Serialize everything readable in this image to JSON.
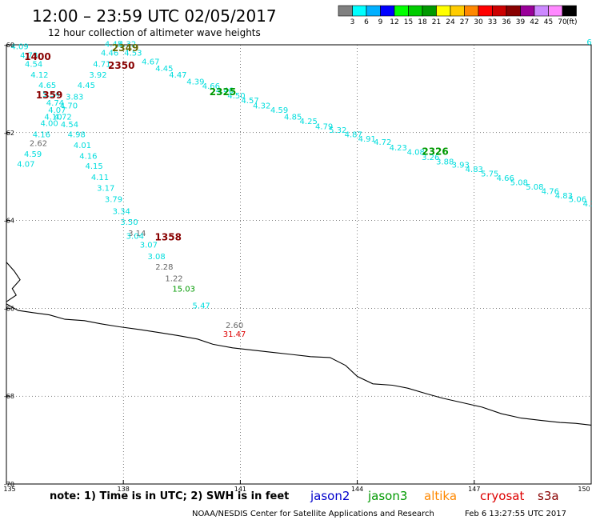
{
  "header": {
    "title": "12:00 – 23:59 UTC 02/05/2017",
    "subtitle": "12 hour collection of altimeter wave heights"
  },
  "legend": {
    "unit": "(ft)",
    "bins": [
      {
        "label": "3",
        "color": "#808080"
      },
      {
        "label": "6",
        "color": "#00ffff"
      },
      {
        "label": "9",
        "color": "#00b0ff"
      },
      {
        "label": "12",
        "color": "#0000ff"
      },
      {
        "label": "15",
        "color": "#00ff00"
      },
      {
        "label": "18",
        "color": "#00cc00"
      },
      {
        "label": "21",
        "color": "#009900"
      },
      {
        "label": "24",
        "color": "#ffff00"
      },
      {
        "label": "27",
        "color": "#ffcc00"
      },
      {
        "label": "30",
        "color": "#ff8800"
      },
      {
        "label": "33",
        "color": "#ff0000"
      },
      {
        "label": "36",
        "color": "#cc0000"
      },
      {
        "label": "39",
        "color": "#880000"
      },
      {
        "label": "42",
        "color": "#990099"
      },
      {
        "label": "45",
        "color": "#cc88ff"
      },
      {
        "label": "70",
        "color": "#ff88ff"
      },
      {
        "label": "",
        "color": "#000000"
      }
    ]
  },
  "axes": {
    "lon_ticks": [
      "135",
      "138",
      "141",
      "144",
      "147",
      "150"
    ],
    "lat_ticks": [
      "-60",
      "-62",
      "-64",
      "-66",
      "-68",
      "-70"
    ]
  },
  "map": {
    "lon_range": [
      135,
      150
    ],
    "lat_range": [
      -70,
      -60
    ],
    "colors": {
      "cyan": "#00dddd",
      "gray": "#666666",
      "green": "#009900",
      "red": "#dd0000",
      "darkred": "#880000",
      "olive": "#666600"
    },
    "points": [
      {
        "lon": 135.34,
        "lat": -60.1,
        "text": "4.09",
        "color": "cyan"
      },
      {
        "lon": 135.58,
        "lat": -60.3,
        "text": "4.73",
        "color": "cyan"
      },
      {
        "lon": 135.7,
        "lat": -60.5,
        "text": "4.54",
        "color": "cyan"
      },
      {
        "lon": 135.85,
        "lat": -60.75,
        "text": "4.12",
        "color": "cyan"
      },
      {
        "lon": 136.05,
        "lat": -60.98,
        "text": "4.65",
        "color": "cyan"
      },
      {
        "lon": 136.15,
        "lat": -61.18,
        "text": "5.54",
        "color": "cyan"
      },
      {
        "lon": 136.25,
        "lat": -61.38,
        "text": "4.74",
        "color": "cyan"
      },
      {
        "lon": 136.3,
        "lat": -61.55,
        "text": "4.07",
        "color": "cyan"
      },
      {
        "lon": 136.2,
        "lat": -61.7,
        "text": "4.10",
        "color": "cyan"
      },
      {
        "lon": 136.1,
        "lat": -61.85,
        "text": "4.00",
        "color": "cyan"
      },
      {
        "lon": 135.9,
        "lat": -62.1,
        "text": "4.16",
        "color": "cyan"
      },
      {
        "lon": 135.82,
        "lat": -62.3,
        "text": "2.62",
        "color": "gray"
      },
      {
        "lon": 135.68,
        "lat": -62.55,
        "text": "4.59",
        "color": "cyan"
      },
      {
        "lon": 135.5,
        "lat": -62.78,
        "text": "4.07",
        "color": "cyan"
      },
      {
        "lon": 136.6,
        "lat": -61.45,
        "text": "4.70",
        "color": "cyan"
      },
      {
        "lon": 136.75,
        "lat": -61.25,
        "text": "3.83",
        "color": "cyan"
      },
      {
        "lon": 137.05,
        "lat": -60.98,
        "text": "4.45",
        "color": "cyan"
      },
      {
        "lon": 137.35,
        "lat": -60.75,
        "text": "3.92",
        "color": "cyan"
      },
      {
        "lon": 137.45,
        "lat": -60.5,
        "text": "4.71",
        "color": "cyan"
      },
      {
        "lon": 137.65,
        "lat": -60.25,
        "text": "4.46",
        "color": "cyan"
      },
      {
        "lon": 137.75,
        "lat": -60.05,
        "text": "4.45",
        "color": "cyan"
      },
      {
        "lon": 138.1,
        "lat": -60.05,
        "text": "4.32",
        "color": "cyan"
      },
      {
        "lon": 138.25,
        "lat": -60.25,
        "text": "4.53",
        "color": "cyan"
      },
      {
        "lon": 138.7,
        "lat": -60.45,
        "text": "4.67",
        "color": "cyan"
      },
      {
        "lon": 136.45,
        "lat": -61.7,
        "text": "4.72",
        "color": "cyan"
      },
      {
        "lon": 136.62,
        "lat": -61.88,
        "text": "4.54",
        "color": "cyan"
      },
      {
        "lon": 136.8,
        "lat": -62.1,
        "text": "4.98",
        "color": "cyan"
      },
      {
        "lon": 136.95,
        "lat": -62.35,
        "text": "4.01",
        "color": "cyan"
      },
      {
        "lon": 137.1,
        "lat": -62.6,
        "text": "4.16",
        "color": "cyan"
      },
      {
        "lon": 137.25,
        "lat": -62.82,
        "text": "4.15",
        "color": "cyan"
      },
      {
        "lon": 137.4,
        "lat": -63.08,
        "text": "4.11",
        "color": "cyan"
      },
      {
        "lon": 137.55,
        "lat": -63.32,
        "text": "3.17",
        "color": "cyan"
      },
      {
        "lon": 137.75,
        "lat": -63.58,
        "text": "3.79",
        "color": "cyan"
      },
      {
        "lon": 137.95,
        "lat": -63.85,
        "text": "3.34",
        "color": "cyan"
      },
      {
        "lon": 138.15,
        "lat": -64.1,
        "text": "3.50",
        "color": "cyan"
      },
      {
        "lon": 138.35,
        "lat": -64.35,
        "text": "3.14",
        "color": "gray"
      },
      {
        "lon": 138.3,
        "lat": -64.42,
        "text": "3.04",
        "color": "cyan"
      },
      {
        "lon": 138.65,
        "lat": -64.62,
        "text": "3.07",
        "color": "cyan"
      },
      {
        "lon": 138.85,
        "lat": -64.88,
        "text": "3.08",
        "color": "cyan"
      },
      {
        "lon": 139.05,
        "lat": -65.12,
        "text": "2.28",
        "color": "gray"
      },
      {
        "lon": 139.3,
        "lat": -65.38,
        "text": "1.22",
        "color": "gray"
      },
      {
        "lon": 139.55,
        "lat": -65.62,
        "text": "15.03",
        "color": "green"
      },
      {
        "lon": 140.0,
        "lat": -66.0,
        "text": "5.47",
        "color": "cyan"
      },
      {
        "lon": 139.05,
        "lat": -60.6,
        "text": "4.45",
        "color": "cyan"
      },
      {
        "lon": 139.4,
        "lat": -60.75,
        "text": "4.47",
        "color": "cyan"
      },
      {
        "lon": 139.85,
        "lat": -60.9,
        "text": "4.39",
        "color": "cyan"
      },
      {
        "lon": 140.25,
        "lat": -61.0,
        "text": "4.66",
        "color": "cyan"
      },
      {
        "lon": 140.6,
        "lat": -61.1,
        "text": "4.46",
        "color": "cyan"
      },
      {
        "lon": 140.9,
        "lat": -61.22,
        "text": "4.50",
        "color": "cyan"
      },
      {
        "lon": 141.25,
        "lat": -61.33,
        "text": "4.57",
        "color": "cyan"
      },
      {
        "lon": 141.55,
        "lat": -61.45,
        "text": "4.32",
        "color": "cyan"
      },
      {
        "lon": 142.0,
        "lat": -61.55,
        "text": "4.59",
        "color": "cyan"
      },
      {
        "lon": 142.35,
        "lat": -61.7,
        "text": "4.85",
        "color": "cyan"
      },
      {
        "lon": 142.75,
        "lat": -61.8,
        "text": "4.25",
        "color": "cyan"
      },
      {
        "lon": 143.15,
        "lat": -61.92,
        "text": "4.79",
        "color": "cyan"
      },
      {
        "lon": 143.5,
        "lat": -62.0,
        "text": "5.32",
        "color": "cyan"
      },
      {
        "lon": 143.9,
        "lat": -62.1,
        "text": "4.87",
        "color": "cyan"
      },
      {
        "lon": 144.25,
        "lat": -62.2,
        "text": "4.91",
        "color": "cyan"
      },
      {
        "lon": 144.65,
        "lat": -62.28,
        "text": "4.72",
        "color": "cyan"
      },
      {
        "lon": 145.05,
        "lat": -62.4,
        "text": "4.23",
        "color": "cyan"
      },
      {
        "lon": 145.5,
        "lat": -62.5,
        "text": "4.08",
        "color": "cyan"
      },
      {
        "lon": 145.88,
        "lat": -62.62,
        "text": "3.26",
        "color": "cyan"
      },
      {
        "lon": 146.25,
        "lat": -62.72,
        "text": "3.88",
        "color": "cyan"
      },
      {
        "lon": 146.65,
        "lat": -62.8,
        "text": "3.93",
        "color": "cyan"
      },
      {
        "lon": 147.0,
        "lat": -62.9,
        "text": "4.83",
        "color": "cyan"
      },
      {
        "lon": 147.4,
        "lat": -63.0,
        "text": "5.75",
        "color": "cyan"
      },
      {
        "lon": 147.8,
        "lat": -63.1,
        "text": "4.66",
        "color": "cyan"
      },
      {
        "lon": 148.15,
        "lat": -63.2,
        "text": "5.08",
        "color": "cyan"
      },
      {
        "lon": 148.55,
        "lat": -63.3,
        "text": "5.08",
        "color": "cyan"
      },
      {
        "lon": 148.95,
        "lat": -63.4,
        "text": "4.76",
        "color": "cyan"
      },
      {
        "lon": 149.3,
        "lat": -63.5,
        "text": "4.83",
        "color": "cyan"
      },
      {
        "lon": 149.65,
        "lat": -63.58,
        "text": "5.06",
        "color": "cyan"
      },
      {
        "lon": 149.95,
        "lat": -63.68,
        "text": "4.3",
        "color": "cyan"
      },
      {
        "lon": 149.95,
        "lat": -60.0,
        "text": "6",
        "color": "cyan"
      },
      {
        "lon": 140.85,
        "lat": -66.45,
        "text": "2.60",
        "color": "gray"
      },
      {
        "lon": 140.85,
        "lat": -66.65,
        "text": "31.47",
        "color": "red"
      }
    ],
    "time_labels": [
      {
        "lon": 135.8,
        "lat": -60.35,
        "text": "1400",
        "color": "darkred"
      },
      {
        "lon": 136.1,
        "lat": -61.22,
        "text": "1359",
        "color": "darkred"
      },
      {
        "lon": 138.05,
        "lat": -60.15,
        "text": "2349",
        "color": "olive"
      },
      {
        "lon": 137.95,
        "lat": -60.55,
        "text": "2350",
        "color": "darkred"
      },
      {
        "lon": 140.55,
        "lat": -61.15,
        "text": "2325",
        "color": "green"
      },
      {
        "lon": 146.0,
        "lat": -62.5,
        "text": "2326",
        "color": "green"
      },
      {
        "lon": 139.15,
        "lat": -64.45,
        "text": "1358",
        "color": "darkred"
      }
    ],
    "coastline": [
      [
        135.0,
        -65.9
      ],
      [
        135.3,
        -66.05
      ],
      [
        135.7,
        -66.1
      ],
      [
        136.1,
        -66.15
      ],
      [
        136.5,
        -66.25
      ],
      [
        137.0,
        -66.28
      ],
      [
        137.4,
        -66.35
      ],
      [
        137.9,
        -66.42
      ],
      [
        138.4,
        -66.48
      ],
      [
        138.9,
        -66.55
      ],
      [
        139.4,
        -66.62
      ],
      [
        139.9,
        -66.7
      ],
      [
        140.3,
        -66.82
      ],
      [
        140.8,
        -66.9
      ],
      [
        141.3,
        -66.95
      ],
      [
        141.8,
        -67.0
      ],
      [
        142.3,
        -67.05
      ],
      [
        142.8,
        -67.1
      ],
      [
        143.3,
        -67.12
      ],
      [
        143.7,
        -67.3
      ],
      [
        144.0,
        -67.55
      ],
      [
        144.4,
        -67.72
      ],
      [
        144.9,
        -67.75
      ],
      [
        145.3,
        -67.82
      ],
      [
        145.8,
        -67.95
      ],
      [
        146.2,
        -68.05
      ],
      [
        146.7,
        -68.15
      ],
      [
        147.2,
        -68.25
      ],
      [
        147.7,
        -68.4
      ],
      [
        148.2,
        -68.5
      ],
      [
        148.7,
        -68.55
      ],
      [
        149.2,
        -68.6
      ],
      [
        149.6,
        -68.62
      ],
      [
        150.0,
        -68.66
      ]
    ],
    "coastline_west_stub": [
      [
        135.0,
        -64.95
      ],
      [
        135.2,
        -65.15
      ],
      [
        135.35,
        -65.35
      ],
      [
        135.15,
        -65.55
      ],
      [
        135.25,
        -65.7
      ],
      [
        135.0,
        -65.85
      ]
    ]
  },
  "footer": {
    "note": "note:  1) Time is in UTC;  2) SWH is in feet",
    "satellites": [
      {
        "label": "jason2",
        "color": "#0000cc"
      },
      {
        "label": "jason3",
        "color": "#009900"
      },
      {
        "label": "altika",
        "color": "#ff8800"
      },
      {
        "label": "cryosat",
        "color": "#dd0000"
      },
      {
        "label": "s3a",
        "color": "#880000"
      }
    ],
    "credit": "NOAA/NESDIS Center for Satellite Applications and Research",
    "timestamp": "Feb  6 13:27:55 UTC 2017"
  }
}
